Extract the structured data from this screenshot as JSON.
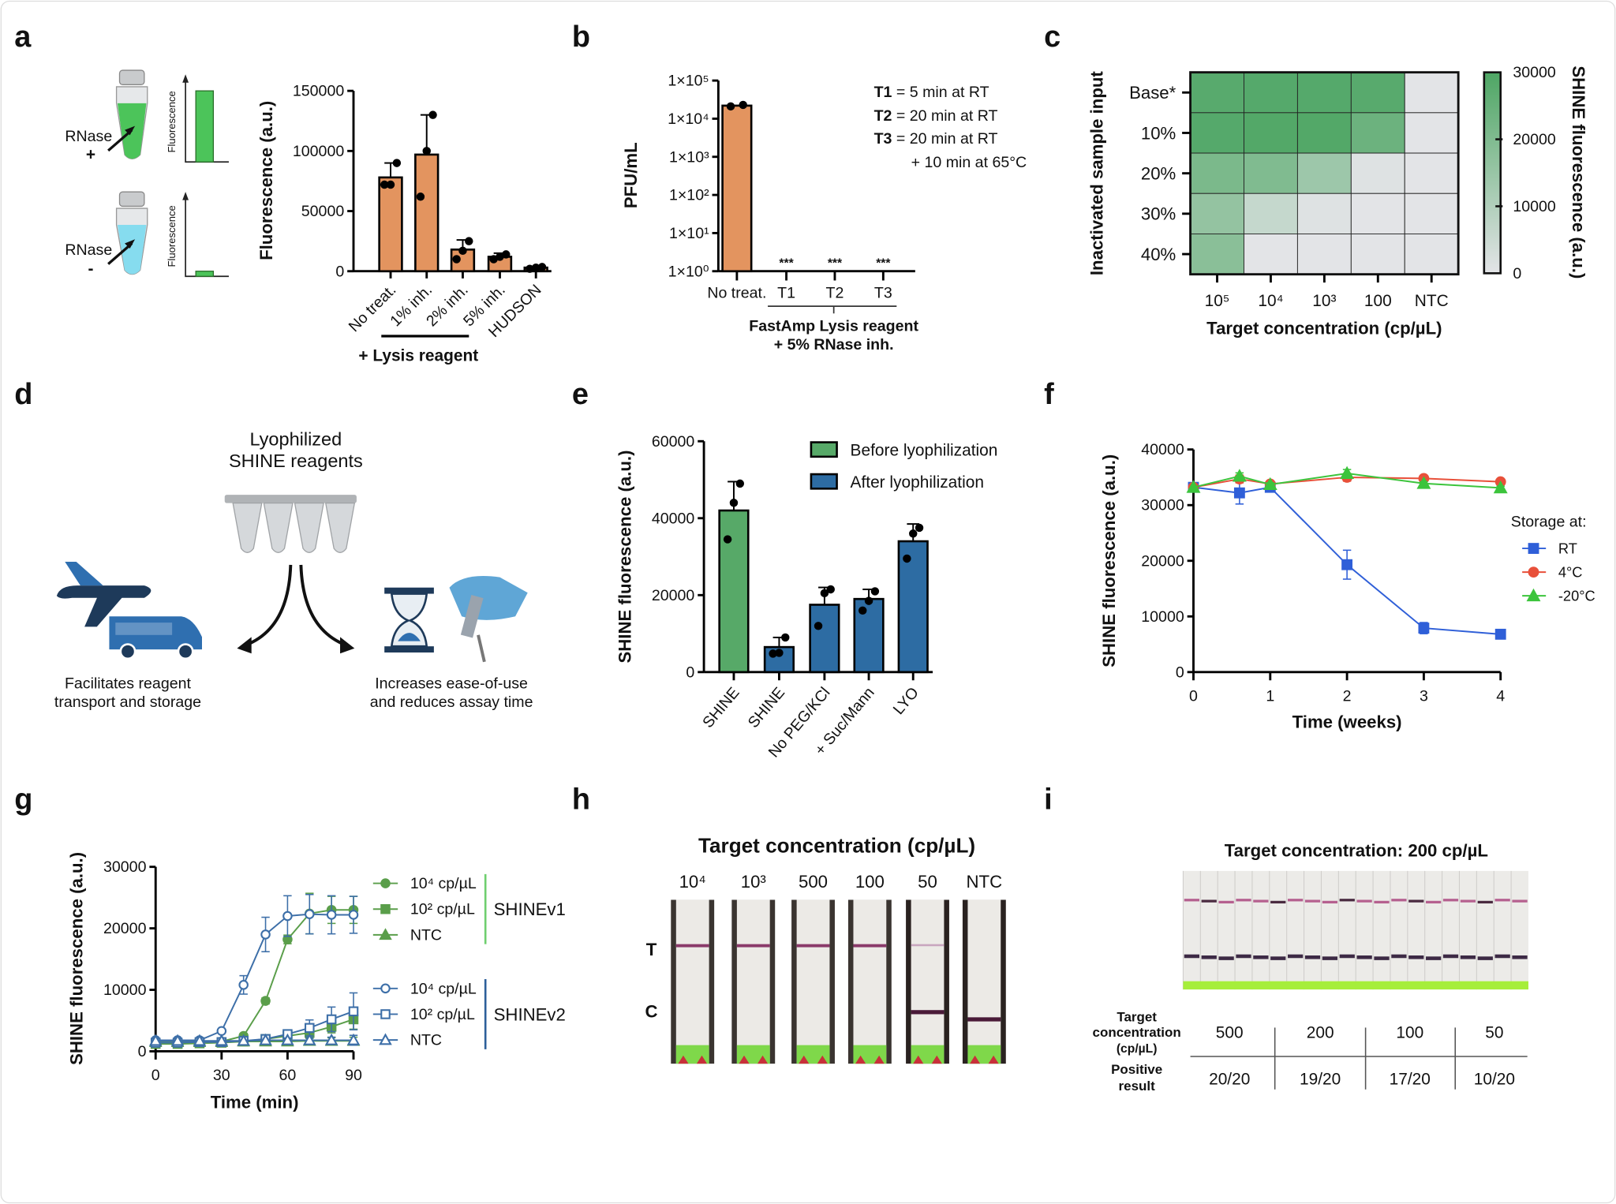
{
  "figure": {
    "panel_letters": [
      "a",
      "b",
      "c",
      "d",
      "e",
      "f",
      "g",
      "h",
      "i"
    ]
  },
  "panels": {
    "a": {
      "rnase": "RNase",
      "plus": "+",
      "minus": "-",
      "mini_ylabel": "Fluorescence",
      "colors": {
        "rnase_plus": "#4cc45a",
        "rnase_minus": "#86dcef"
      }
    },
    "b": {
      "legend": [
        {
          "key": "T1",
          "desc": "= 5 min at RT"
        },
        {
          "key": "T2",
          "desc": "= 20 min at RT"
        },
        {
          "key": "T3",
          "desc": "= 20 min at RT"
        }
      ],
      "legend_extra": "+ 10 min at 65°C",
      "group_label": [
        "FastAmp Lysis reagent",
        "+ 5% RNase inh."
      ]
    },
    "d": {
      "title": [
        "Lyophilized",
        "SHINE reagents"
      ],
      "left_caption": [
        "Facilitates reagent",
        "transport and storage"
      ],
      "right_caption": [
        "Increases ease-of-use",
        "and reduces assay time"
      ]
    },
    "h": {
      "title": "Target concentration (cp/µL)",
      "lanes": [
        "10⁴",
        "10³",
        "500",
        "100",
        "50",
        "NTC"
      ],
      "line_labels": [
        "T",
        "C"
      ]
    },
    "i": {
      "title": "Target concentration: 200 cp/µL",
      "row_labels": [
        [
          "Target",
          "concentration",
          "(cp/µL)"
        ],
        [
          "Positive",
          "result"
        ]
      ],
      "concentrations": [
        "500",
        "200",
        "100",
        "50"
      ],
      "positive": [
        "20/20",
        "19/20",
        "17/20",
        "10/20"
      ]
    }
  },
  "chart_data": [
    {
      "panel": "a",
      "type": "bar",
      "categories": [
        "No treat.",
        "1% inh.",
        "2% inh.",
        "5% inh.",
        "HUDSON"
      ],
      "values": [
        78000,
        97000,
        18000,
        12000,
        3000
      ],
      "error_upper": [
        90000,
        130000,
        26000,
        15000,
        4000
      ],
      "points": [
        [
          72000,
          72000,
          90000
        ],
        [
          62000,
          100000,
          130000
        ],
        [
          10000,
          17000,
          25000
        ],
        [
          10000,
          12000,
          14000
        ],
        [
          2000,
          3000,
          3500
        ]
      ],
      "ylabel": "Fluorescence (a.u.)",
      "ylim": [
        0,
        150000
      ],
      "yticks": [
        "0",
        "50000",
        "100000",
        "150000"
      ],
      "group_label": "+ Lysis reagent",
      "color": "#e3945f"
    },
    {
      "panel": "b",
      "type": "bar",
      "yscale": "log",
      "categories": [
        "No treat.",
        "T1",
        "T2",
        "T3"
      ],
      "values": [
        22000,
        null,
        null,
        null
      ],
      "points": [
        [
          21000,
          23000
        ],
        [],
        [],
        []
      ],
      "annotations": [
        "",
        "***",
        "***",
        "***"
      ],
      "ylabel": "PFU/mL",
      "ylim": [
        1,
        100000
      ],
      "yticks": [
        "1×10⁰",
        "1×10¹",
        "1×10²",
        "1×10³",
        "1×10⁴",
        "1×10⁵"
      ],
      "color": "#e3945f"
    },
    {
      "panel": "c",
      "type": "heatmap",
      "rows": [
        "Base*",
        "10%",
        "20%",
        "30%",
        "40%"
      ],
      "columns": [
        "10⁵",
        "10⁴",
        "10³",
        "100",
        "NTC"
      ],
      "values": [
        [
          28000,
          28500,
          28500,
          28000,
          0
        ],
        [
          28500,
          29000,
          29000,
          24000,
          0
        ],
        [
          21000,
          20000,
          14000,
          1000,
          0
        ],
        [
          16000,
          6000,
          1000,
          0,
          0
        ],
        [
          18000,
          0,
          0,
          0,
          0
        ]
      ],
      "xlabel": "Target concentration (cp/µL)",
      "ylabel": "Inactivated sample input",
      "colorbar_label": "SHINE fluorescence (a.u.)",
      "colorbar_ticks": [
        "0",
        "10000",
        "20000",
        "30000"
      ],
      "zlim": [
        0,
        30000
      ],
      "colors": {
        "low": "#e3e4e7",
        "high": "#4ea664"
      }
    },
    {
      "panel": "e",
      "type": "bar",
      "categories": [
        "SHINE",
        "SHINE",
        "No PEG/KCl",
        "+ Suc/Mann",
        "LYO"
      ],
      "values": [
        42000,
        6500,
        17500,
        19000,
        34000
      ],
      "error_upper": [
        49500,
        9000,
        22000,
        21500,
        38500
      ],
      "points": [
        [
          34500,
          44000,
          49000
        ],
        [
          4800,
          5000,
          9000
        ],
        [
          12000,
          20500,
          21500
        ],
        [
          16000,
          18500,
          21000
        ],
        [
          29500,
          36000,
          37500
        ]
      ],
      "series_of_bar": [
        0,
        1,
        1,
        1,
        1
      ],
      "series": [
        {
          "name": "Before lyophilization",
          "color": "#57a968"
        },
        {
          "name": "After lyophilization",
          "color": "#2d6ca3"
        }
      ],
      "ylabel": "SHINE fluorescence (a.u.)",
      "ylim": [
        0,
        60000
      ],
      "yticks": [
        "0",
        "20000",
        "40000",
        "60000"
      ],
      "legend": "top-right"
    },
    {
      "panel": "f",
      "type": "line",
      "x": [
        0,
        0.6,
        1,
        2,
        3,
        4
      ],
      "series": [
        {
          "name": "RT",
          "marker": "square",
          "color": "#2f5fd8",
          "values": [
            33200,
            32200,
            33200,
            19300,
            7900,
            6800
          ],
          "errors": [
            0,
            2000,
            400,
            2600,
            1000,
            300
          ]
        },
        {
          "name": "4°C",
          "marker": "circle",
          "color": "#e8503a",
          "values": [
            33200,
            34700,
            33800,
            35000,
            34800,
            34200
          ],
          "errors": [
            0,
            700,
            300,
            700,
            300,
            300
          ]
        },
        {
          "name": "-20°C",
          "marker": "triangle",
          "color": "#3cc43c",
          "values": [
            33200,
            35200,
            33700,
            35700,
            33900,
            33100
          ],
          "errors": [
            0,
            600,
            300,
            700,
            300,
            300
          ]
        }
      ],
      "xlabel": "Time (weeks)",
      "ylabel": "SHINE fluorescence (a.u.)",
      "xlim": [
        0,
        4
      ],
      "ylim": [
        0,
        40000
      ],
      "xticks": [
        "0",
        "1",
        "2",
        "3",
        "4"
      ],
      "yticks": [
        "0",
        "10000",
        "20000",
        "30000",
        "40000"
      ],
      "legend_title": "Storage at:",
      "legend": "right"
    },
    {
      "panel": "g",
      "type": "line",
      "x": [
        0,
        10,
        20,
        30,
        40,
        50,
        60,
        70,
        80,
        90
      ],
      "series": [
        {
          "name": "10⁴ cp/µL",
          "group": "SHINEv1",
          "marker": "circle",
          "filled": true,
          "color": "#5a9e4a",
          "values": [
            1500,
            1500,
            1500,
            1600,
            2500,
            8200,
            18200,
            22400,
            23000,
            23000
          ],
          "errors": [
            0,
            0,
            0,
            0,
            400,
            500,
            700,
            3300,
            2200,
            2200
          ]
        },
        {
          "name": "10² cp/µL",
          "group": "SHINEv1",
          "marker": "square",
          "filled": true,
          "color": "#5a9e4a",
          "values": [
            1200,
            1200,
            1300,
            1400,
            1600,
            2000,
            2500,
            3000,
            4000,
            5200
          ],
          "errors": [
            0,
            0,
            0,
            0,
            0,
            200,
            400,
            700,
            1000,
            1600
          ]
        },
        {
          "name": "NTC",
          "group": "SHINEv1",
          "marker": "triangle",
          "filled": true,
          "color": "#5a9e4a",
          "values": [
            1500,
            1500,
            1500,
            1500,
            1600,
            1600,
            1600,
            1700,
            1700,
            1700
          ],
          "errors": [
            0,
            0,
            0,
            0,
            0,
            0,
            300,
            400,
            500,
            600
          ]
        },
        {
          "name": "10⁴ cp/µL",
          "group": "SHINEv2",
          "marker": "circle",
          "filled": false,
          "color": "#3d6fa8",
          "values": [
            1800,
            1800,
            1800,
            3300,
            10800,
            19000,
            22000,
            22300,
            22200,
            22200
          ],
          "errors": [
            0,
            0,
            0,
            300,
            1500,
            2800,
            3300,
            3200,
            3100,
            3000
          ]
        },
        {
          "name": "10² cp/µL",
          "group": "SHINEv2",
          "marker": "square",
          "filled": false,
          "color": "#3d6fa8",
          "values": [
            1400,
            1400,
            1500,
            1500,
            1700,
            2000,
            2800,
            3800,
            5200,
            6500
          ],
          "errors": [
            0,
            0,
            0,
            0,
            0,
            200,
            500,
            1300,
            2000,
            3000
          ]
        },
        {
          "name": "NTC",
          "group": "SHINEv2",
          "marker": "triangle",
          "filled": false,
          "color": "#3d6fa8",
          "values": [
            1700,
            1700,
            1700,
            1700,
            1700,
            1800,
            1800,
            1800,
            1800,
            1800
          ],
          "errors": [
            0,
            0,
            0,
            0,
            0,
            0,
            300,
            400,
            500,
            800
          ]
        }
      ],
      "groups": [
        {
          "name": "SHINEv1",
          "color": "#6fcf6f"
        },
        {
          "name": "SHINEv2",
          "color": "#2d5f9a"
        }
      ],
      "xlabel": "Time (min)",
      "ylabel": "SHINE fluorescence (a.u.)",
      "xlim": [
        0,
        90
      ],
      "ylim": [
        0,
        30000
      ],
      "xticks": [
        "0",
        "30",
        "60",
        "90"
      ],
      "yticks": [
        "0",
        "10000",
        "20000",
        "30000"
      ],
      "legend": "right"
    }
  ]
}
